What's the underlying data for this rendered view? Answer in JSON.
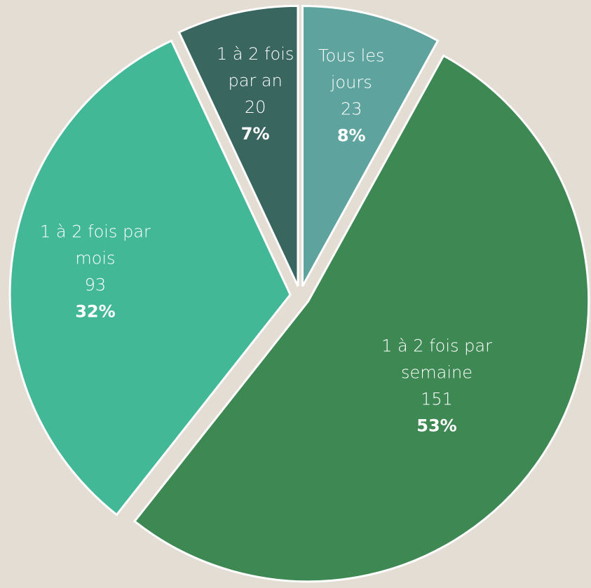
{
  "chart_data": {
    "type": "pie",
    "categories": [
      "Tous les jours",
      "1 à 2 fois par semaine",
      "1 à 2 fois par mois",
      "1 à 2 fois par an"
    ],
    "values": [
      23,
      151,
      93,
      20
    ],
    "value_labels": [
      "8%",
      "53%",
      "32%",
      "7%"
    ],
    "colors": [
      "#5fa39e",
      "#3e8853",
      "#42b897",
      "#3a6660"
    ],
    "start_angle": 0,
    "direction": "clockwise",
    "exploded": true
  }
}
